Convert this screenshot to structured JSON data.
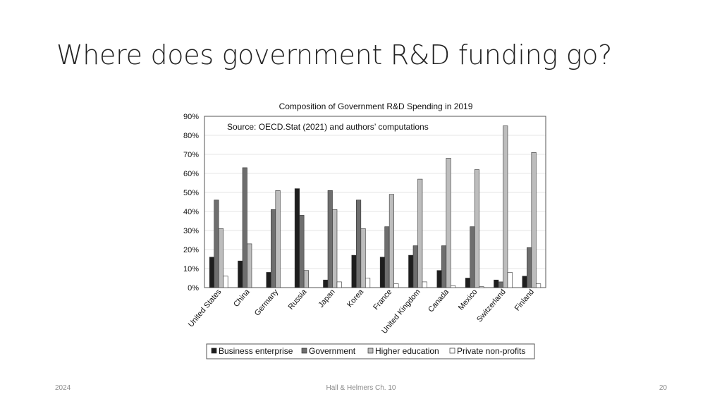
{
  "slide": {
    "title": "Where does government R&D funding go?",
    "footer_left": "2024",
    "footer_center": "Hall & Helmers Ch. 10",
    "footer_right": "20"
  },
  "chart_data": {
    "type": "bar",
    "title": "Composition of Government R&D Spending in 2019",
    "annotation": "Source: OECD.Stat (2021) and authors’ computations",
    "xlabel": "",
    "ylabel": "",
    "ylim": [
      0,
      90
    ],
    "y_ticks": [
      0,
      10,
      20,
      30,
      40,
      50,
      60,
      70,
      80,
      90
    ],
    "y_tick_labels": [
      "0%",
      "10%",
      "20%",
      "30%",
      "40%",
      "50%",
      "60%",
      "70%",
      "80%",
      "90%"
    ],
    "grid": true,
    "legend_position": "bottom",
    "categories": [
      "United States",
      "China",
      "Germany",
      "Russia",
      "Japan",
      "Korea",
      "France",
      "United Kingdom",
      "Canada",
      "Mexico",
      "Switzerland",
      "Finland"
    ],
    "series": [
      {
        "name": "Business enterprise",
        "color": "#1e1e1e",
        "values": [
          16,
          14,
          8,
          52,
          4,
          17,
          16,
          17,
          9,
          5,
          4,
          6
        ]
      },
      {
        "name": "Government",
        "color": "#6e6e6e",
        "values": [
          46,
          63,
          41,
          38,
          51,
          46,
          32,
          22,
          22,
          32,
          3,
          21
        ]
      },
      {
        "name": "Higher education",
        "color": "#bdbdbd",
        "values": [
          31,
          23,
          51,
          9,
          41,
          31,
          49,
          57,
          68,
          62,
          85,
          71
        ]
      },
      {
        "name": "Private non-profits",
        "color": "#ffffff",
        "values": [
          6,
          0,
          0,
          0,
          3,
          5,
          2,
          3,
          1,
          0.5,
          8,
          2
        ]
      }
    ]
  }
}
